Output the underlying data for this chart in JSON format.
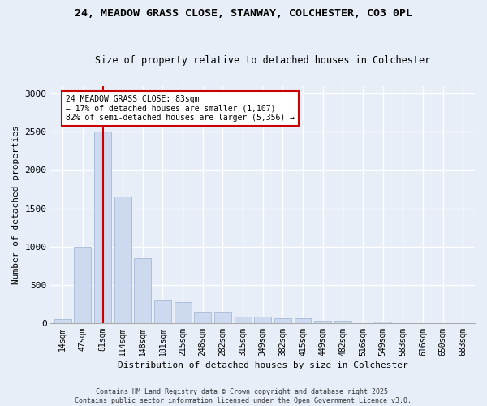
{
  "title": "24, MEADOW GRASS CLOSE, STANWAY, COLCHESTER, CO3 0PL",
  "subtitle": "Size of property relative to detached houses in Colchester",
  "xlabel": "Distribution of detached houses by size in Colchester",
  "ylabel": "Number of detached properties",
  "categories": [
    "14sqm",
    "47sqm",
    "81sqm",
    "114sqm",
    "148sqm",
    "181sqm",
    "215sqm",
    "248sqm",
    "282sqm",
    "315sqm",
    "349sqm",
    "382sqm",
    "415sqm",
    "449sqm",
    "482sqm",
    "516sqm",
    "549sqm",
    "583sqm",
    "616sqm",
    "650sqm",
    "683sqm"
  ],
  "values": [
    50,
    1000,
    2500,
    1650,
    850,
    300,
    270,
    150,
    150,
    80,
    80,
    60,
    60,
    30,
    30,
    0,
    25,
    0,
    0,
    0,
    0
  ],
  "bar_color": "#ccd9ee",
  "bar_edge_color": "#9ab0d0",
  "vline_x": 2,
  "vline_color": "#cc0000",
  "annotation_text": "24 MEADOW GRASS CLOSE: 83sqm\n← 17% of detached houses are smaller (1,107)\n82% of semi-detached houses are larger (5,356) →",
  "annotation_box_facecolor": "white",
  "annotation_box_edgecolor": "#cc0000",
  "ylim": [
    0,
    3100
  ],
  "yticks": [
    0,
    500,
    1000,
    1500,
    2000,
    2500,
    3000
  ],
  "footer_text": "Contains HM Land Registry data © Crown copyright and database right 2025.\nContains public sector information licensed under the Open Government Licence v3.0.",
  "bg_color": "#e8eef8",
  "plot_bg_color": "#e8eef8",
  "grid_color": "white",
  "title_fontsize": 9.5,
  "subtitle_fontsize": 8.5
}
